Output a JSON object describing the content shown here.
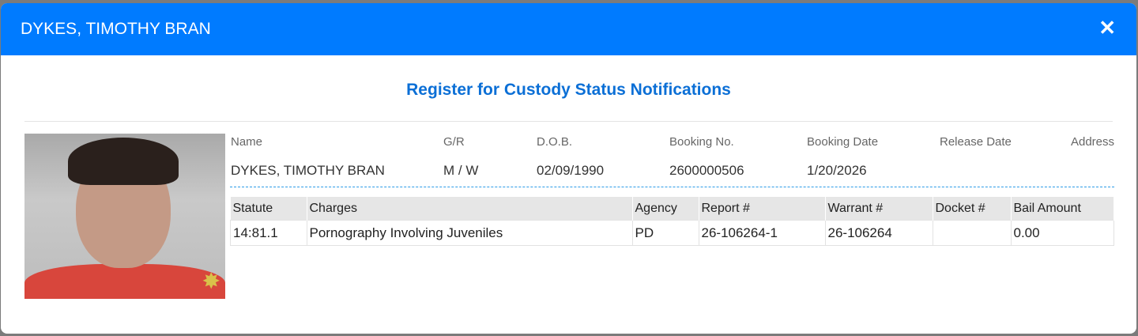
{
  "header": {
    "title": "DYKES, TIMOTHY BRAN",
    "close_icon": "close-icon"
  },
  "register_link": "Register for Custody Status Notifications",
  "info": {
    "labels": [
      "Name",
      "G/R",
      "D.O.B.",
      "Booking No.",
      "Booking Date",
      "Release Date",
      "Address"
    ],
    "values": [
      "DYKES, TIMOTHY BRAN",
      "M / W",
      "02/09/1990",
      "2600000506",
      "1/20/2026",
      "",
      ""
    ]
  },
  "charges": {
    "columns": [
      "Statute",
      "Charges",
      "Agency",
      "Report #",
      "Warrant #",
      "Docket #",
      "Bail Amount"
    ],
    "rows": [
      [
        "14:81.1",
        "Pornography Involving Juveniles",
        "PD",
        "26-106264-1",
        "26-106264",
        "",
        "0.00"
      ]
    ]
  }
}
